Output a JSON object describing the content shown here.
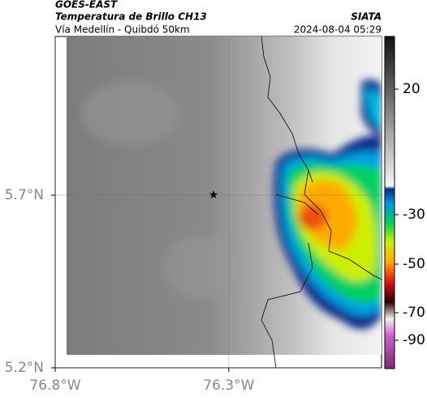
{
  "header": {
    "satellite": "GOES-EAST",
    "product": "Temperatura de Brillo CH13",
    "region": "Vía Medellín - Quibdó 50km",
    "source": "SIATA",
    "datetime": "2024-08-04 05:29"
  },
  "map": {
    "lon_lim": [
      -76.8,
      -75.86
    ],
    "lat_lim": [
      5.2,
      6.16
    ],
    "lon_ticks": [
      {
        "value": -76.8,
        "label": "76.8°W"
      },
      {
        "value": -76.3,
        "label": "76.3°W"
      }
    ],
    "lat_ticks": [
      {
        "value": 5.7,
        "label": "5.7°N"
      },
      {
        "value": 5.2,
        "label": "5.2°N"
      }
    ]
  },
  "colorbar": {
    "ticks": [
      20,
      -30,
      -50,
      -70,
      -90
    ]
  }
}
